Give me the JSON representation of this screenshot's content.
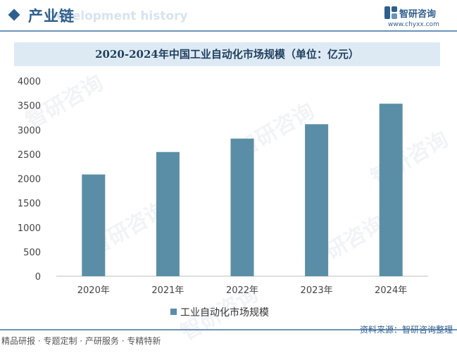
{
  "header": {
    "section_title": "产业链",
    "section_ghost": "Development history",
    "brand_name": "智研咨询",
    "brand_url": "www.chyxx.com"
  },
  "legend": {
    "label": "工业自动化市场规模"
  },
  "footer": {
    "services": "精品研报 · 专题定制 · 产研服务 · 专精特新",
    "source": "资料来源：智研咨询整理"
  },
  "watermark": "智研咨询",
  "colors": {
    "bar": "#5a8ea6",
    "accent": "#2f5f8c",
    "title_band": "#deeaf3"
  },
  "chart_data": {
    "type": "bar",
    "title": "2020-2024年中国工业自动化市场规模（单位：亿元）",
    "xlabel": "",
    "ylabel": "",
    "categories": [
      "2020年",
      "2021年",
      "2022年",
      "2023年",
      "2024年"
    ],
    "series": [
      {
        "name": "工业自动化市场规模",
        "values": [
          2085,
          2545,
          2820,
          3115,
          3535
        ]
      }
    ],
    "ylim": [
      0,
      4000
    ],
    "yticks": [
      0,
      500,
      1000,
      1500,
      2000,
      2500,
      3000,
      3500,
      4000
    ],
    "grid": false,
    "legend": "bottom"
  }
}
